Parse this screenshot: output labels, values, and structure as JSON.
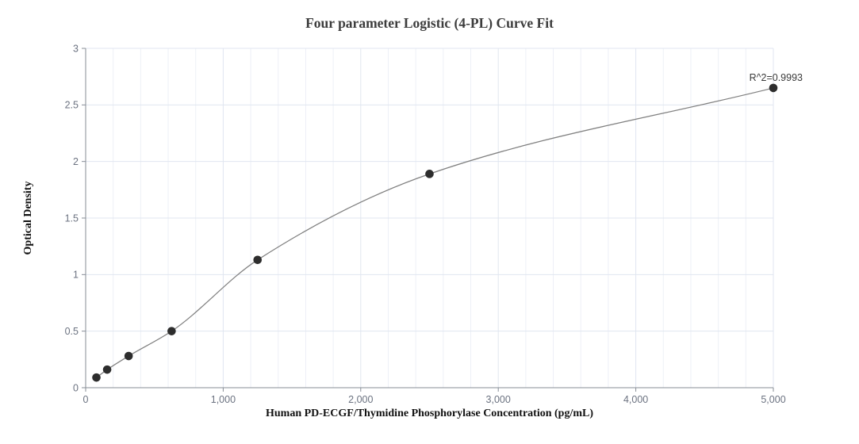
{
  "chart_data": {
    "type": "scatter",
    "title": "Four parameter Logistic (4-PL) Curve Fit",
    "xlabel": "Human PD-ECGF/Thymidine Phosphorylase Concentration (pg/mL)",
    "ylabel": "Optical Density",
    "x": [
      78.1,
      156.3,
      312.5,
      625,
      1250,
      2500,
      5000
    ],
    "y": [
      0.09,
      0.16,
      0.28,
      0.5,
      1.13,
      1.89,
      2.65
    ],
    "fit_curve": "4-PL logistic fit through all points",
    "r_squared": 0.9993,
    "r_squared_label": "R^2=0.9993",
    "xlim": [
      0,
      5000
    ],
    "ylim": [
      0,
      3
    ],
    "x_ticks": [
      0,
      1000,
      2000,
      3000,
      4000,
      5000
    ],
    "x_tick_labels": [
      "0",
      "1,000",
      "2,000",
      "3,000",
      "4,000",
      "5,000"
    ],
    "x_minor_grid_step": 200,
    "y_ticks": [
      0,
      0.5,
      1,
      1.5,
      2,
      2.5,
      3
    ],
    "y_tick_labels": [
      "0",
      "0.5",
      "1",
      "1.5",
      "2",
      "2.5",
      "3"
    ],
    "grid": "on",
    "legend": "none"
  },
  "colors": {
    "background": "#ffffff",
    "grid_minor": "#edf0f7",
    "grid_major": "#e0e6f0",
    "axis": "#878d96",
    "tick_label": "#6b7280",
    "title": "#3c3c3c",
    "axis_label": "#111111",
    "curve": "#808080",
    "point": "#2d2d2d",
    "annotation": "#3a3a3a"
  }
}
